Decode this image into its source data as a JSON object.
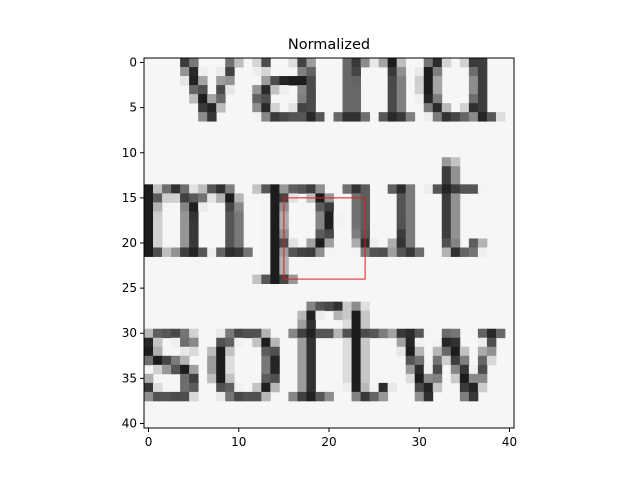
{
  "chart_data": {
    "type": "heatmap",
    "title": "Normalized",
    "xlabel": "",
    "ylabel": "",
    "x_range": [
      -0.5,
      40.5
    ],
    "y_range": [
      40.5,
      -0.5
    ],
    "x_ticks": [
      0,
      10,
      20,
      30,
      40
    ],
    "y_ticks": [
      0,
      5,
      10,
      15,
      20,
      25,
      30,
      35,
      40
    ],
    "grid": false,
    "colormap": "gray",
    "image_size": [
      41,
      41
    ],
    "glyph_rows": [
      {
        "text": "vand",
        "baseline": 6
      },
      {
        "text": "mput",
        "baseline": 21
      },
      {
        "text": "softw",
        "baseline": 37
      }
    ],
    "highlight_box": {
      "x0": 15,
      "y0": 15,
      "x1": 24,
      "y1": 24,
      "color": "#e41a1c"
    }
  }
}
